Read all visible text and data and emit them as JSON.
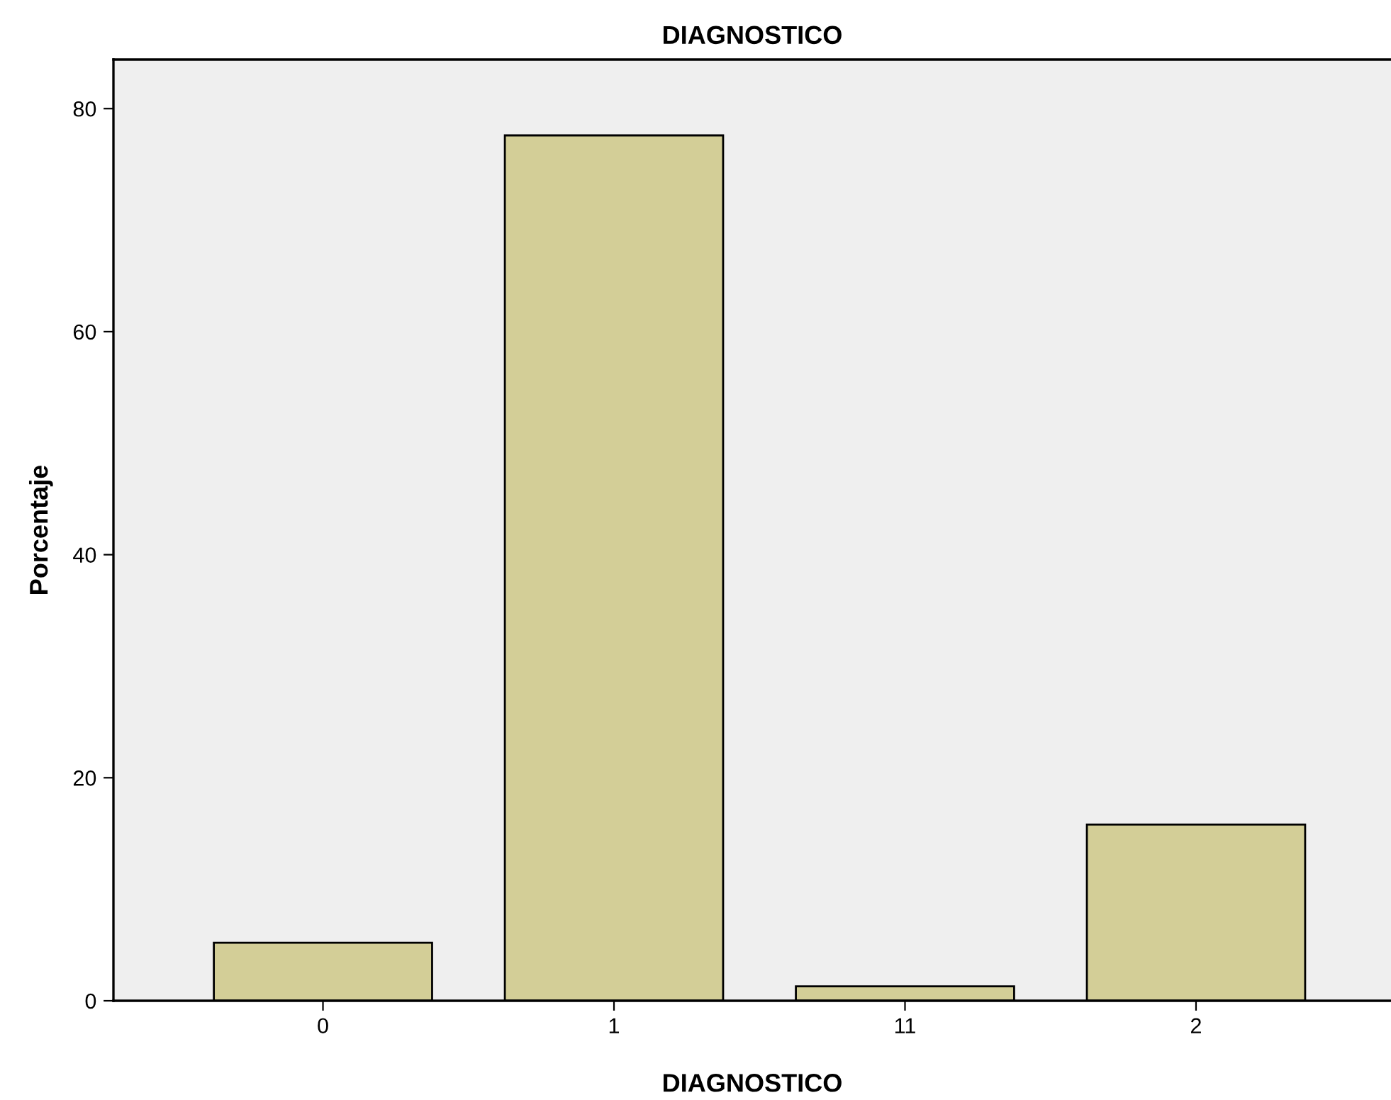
{
  "chart_data": {
    "type": "bar",
    "title": "DIAGNOSTICO",
    "xlabel": "DIAGNOSTICO",
    "ylabel": "Porcentaje",
    "categories": [
      "0",
      "1",
      "11",
      "2"
    ],
    "values": [
      5.2,
      77.6,
      1.3,
      15.8
    ],
    "color": "#d3ce97",
    "ylim": [
      0,
      84.4
    ],
    "yticks": [
      0,
      20,
      40,
      60,
      80
    ],
    "grid": false,
    "legend": false
  }
}
